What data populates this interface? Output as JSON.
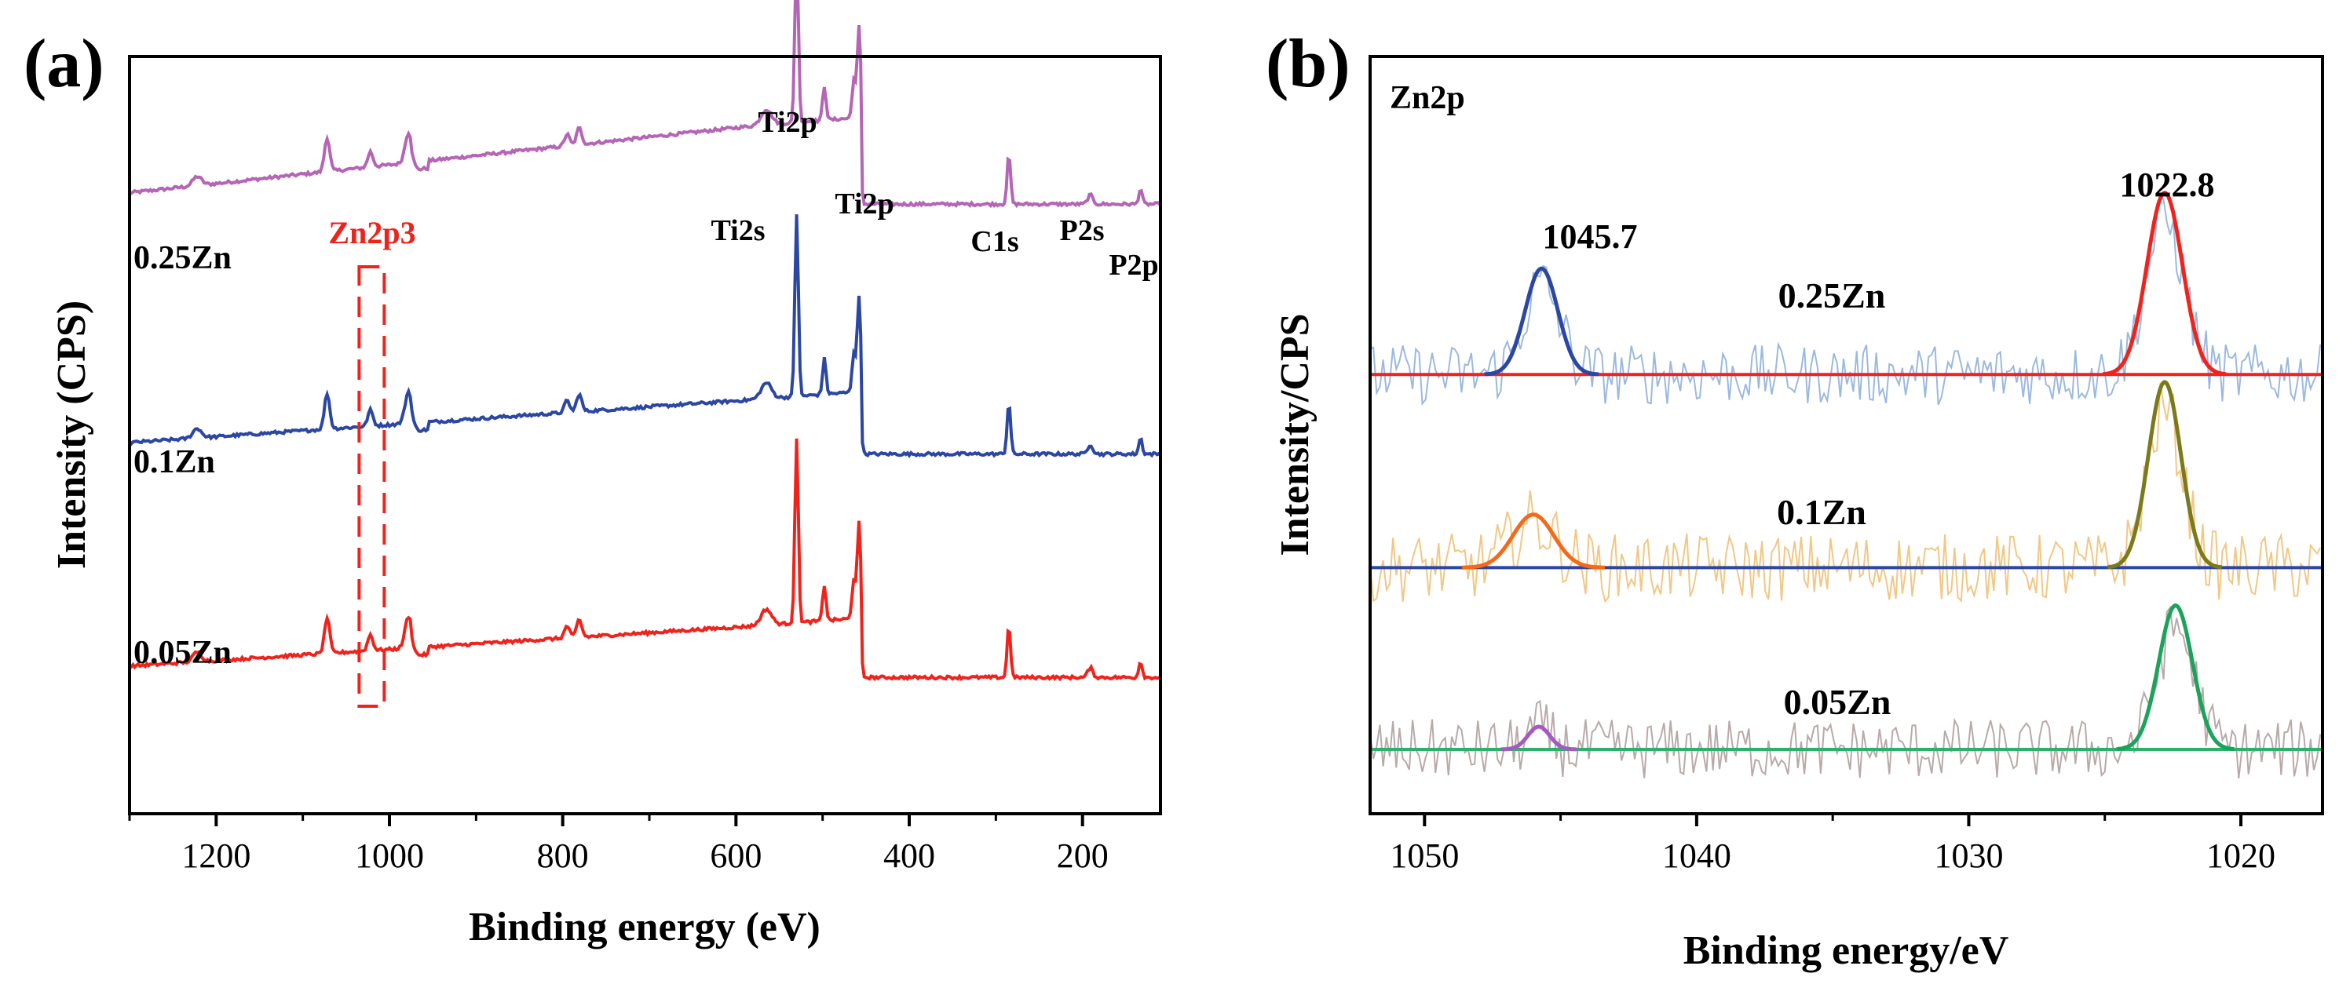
{
  "chart_data": [
    {
      "panel_label": "(a)",
      "type": "line",
      "xlabel": "Binding energy (eV)",
      "ylabel": "Intensity (CPS)",
      "xlim": [
        1300,
        110
      ],
      "x_reversed": true,
      "x_ticks": [
        1200,
        1000,
        800,
        600,
        400,
        200
      ],
      "y_ticks": false,
      "grid": false,
      "series": [
        {
          "name": "0.25Zn",
          "color": "#b565b5",
          "baseline": 0.82,
          "slope": 0.112,
          "peak_scale": 1.0
        },
        {
          "name": "0.1Zn",
          "color": "#2c47a3",
          "baseline": 0.49,
          "slope": 0.072,
          "peak_scale": 1.05
        },
        {
          "name": "0.05Zn",
          "color": "#f0231c",
          "baseline": 0.195,
          "slope": 0.067,
          "peak_scale": 1.05
        }
      ],
      "survey_peaks": [
        {
          "x": 1222,
          "h": 0.012,
          "w": 5
        },
        {
          "x": 1072,
          "h": 0.045,
          "w": 3
        },
        {
          "x": 1022,
          "h": 0.02,
          "w": 3
        },
        {
          "x": 978,
          "h": 0.04,
          "w": 4
        },
        {
          "x": 795,
          "h": 0.015,
          "w": 3
        },
        {
          "x": 781,
          "h": 0.022,
          "w": 3
        },
        {
          "x": 565,
          "h": 0.02,
          "w": 6
        },
        {
          "x": 530,
          "h": 0.23,
          "w": 2
        },
        {
          "x": 498,
          "h": 0.045,
          "w": 2
        },
        {
          "x": 464,
          "h": 0.05,
          "w": 2
        },
        {
          "x": 458,
          "h": 0.12,
          "w": 2
        },
        {
          "x": 285,
          "h": 0.065,
          "w": 2
        },
        {
          "x": 191,
          "h": 0.012,
          "w": 3
        },
        {
          "x": 133,
          "h": 0.02,
          "w": 2
        }
      ],
      "annotations": [
        {
          "text": "Ti2p",
          "x": 530,
          "color": "#1a1a1a"
        },
        {
          "text": "Ti2s",
          "x": 565,
          "color": "#1a1a1a"
        },
        {
          "text": "Ti2p",
          "x": 455,
          "color": "#1a1a1a"
        },
        {
          "text": "C1s",
          "x": 285,
          "color": "#1a1a1a"
        },
        {
          "text": "P2s",
          "x": 191,
          "color": "#1a1a1a"
        },
        {
          "text": "P2p",
          "x": 133,
          "color": "#1a1a1a"
        },
        {
          "text": "Zn2p3",
          "x": 1022,
          "color": "#f0231c"
        }
      ],
      "highlight_box": {
        "x_range": [
          1035,
          1006
        ],
        "color": "#f0231c",
        "label": "Zn2p3"
      }
    },
    {
      "panel_label": "(b)",
      "type": "line",
      "title": "Zn2p",
      "xlabel": "Binding energy/eV",
      "ylabel": "Intensity/CPS",
      "xlim": [
        1052,
        1017
      ],
      "x_reversed": true,
      "x_ticks": [
        1050,
        1040,
        1030,
        1020
      ],
      "y_ticks": false,
      "grid": false,
      "peak_labels": [
        {
          "text": "1045.7",
          "x": 1045.7
        },
        {
          "text": "1022.8",
          "x": 1022.8
        }
      ],
      "series": [
        {
          "name": "0.25Zn",
          "raw_color": "#9bb9e0",
          "baseline_color": "#f0231c",
          "baseline": 0.58,
          "noise_amp": 0.04,
          "fit_peaks": [
            {
              "center": 1045.7,
              "height": 0.14,
              "sigma": 0.6,
              "color": "#2c47a3"
            },
            {
              "center": 1022.8,
              "height": 0.24,
              "sigma": 0.65,
              "color": "#f0231c"
            }
          ]
        },
        {
          "name": "0.1Zn",
          "raw_color": "#f2c784",
          "baseline_color": "#2c47a3",
          "baseline": 0.325,
          "noise_amp": 0.045,
          "fit_peaks": [
            {
              "center": 1046.0,
              "height": 0.07,
              "sigma": 0.75,
              "color": "#f26a1a"
            },
            {
              "center": 1022.8,
              "height": 0.245,
              "sigma": 0.6,
              "color": "#7a7a1a"
            }
          ]
        },
        {
          "name": "0.05Zn",
          "raw_color": "#b8aaa8",
          "baseline_color": "#2db06a",
          "baseline": 0.085,
          "noise_amp": 0.04,
          "fit_peaks": [
            {
              "center": 1045.8,
              "height": 0.03,
              "sigma": 0.4,
              "color": "#a45bc1"
            },
            {
              "center": 1022.4,
              "height": 0.19,
              "sigma": 0.62,
              "color": "#1aa35a"
            }
          ]
        }
      ]
    }
  ]
}
